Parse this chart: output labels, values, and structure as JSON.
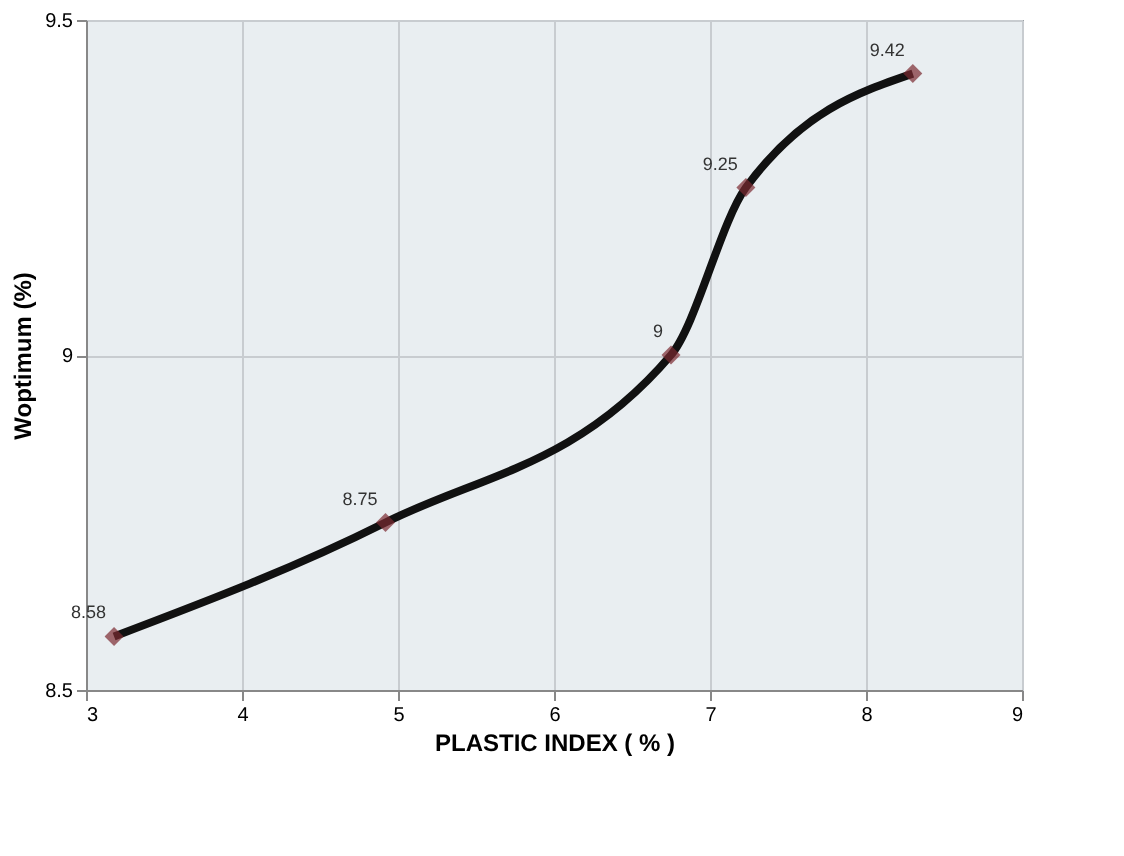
{
  "chart_data": {
    "type": "line",
    "xlabel": "PLASTIC INDEX ( % )",
    "ylabel": "Woptimum  (%)",
    "x": [
      3.18,
      4.92,
      6.75,
      7.23,
      8.3
    ],
    "series": [
      {
        "color": "#111111",
        "values": [
          8.58,
          8.75,
          9,
          9.25,
          9.42
        ],
        "value_labels": [
          "8.58",
          "8.75",
          "9",
          "9.25",
          "9.42"
        ]
      }
    ],
    "xlim": [
      3,
      9
    ],
    "xticks": [
      3,
      4,
      5,
      6,
      7,
      8,
      9
    ],
    "ylim": [
      8.5,
      9.5
    ],
    "yticks": [
      8.5,
      9,
      9.5
    ],
    "grid": true,
    "marker": "diamond",
    "line_style": "solid"
  }
}
